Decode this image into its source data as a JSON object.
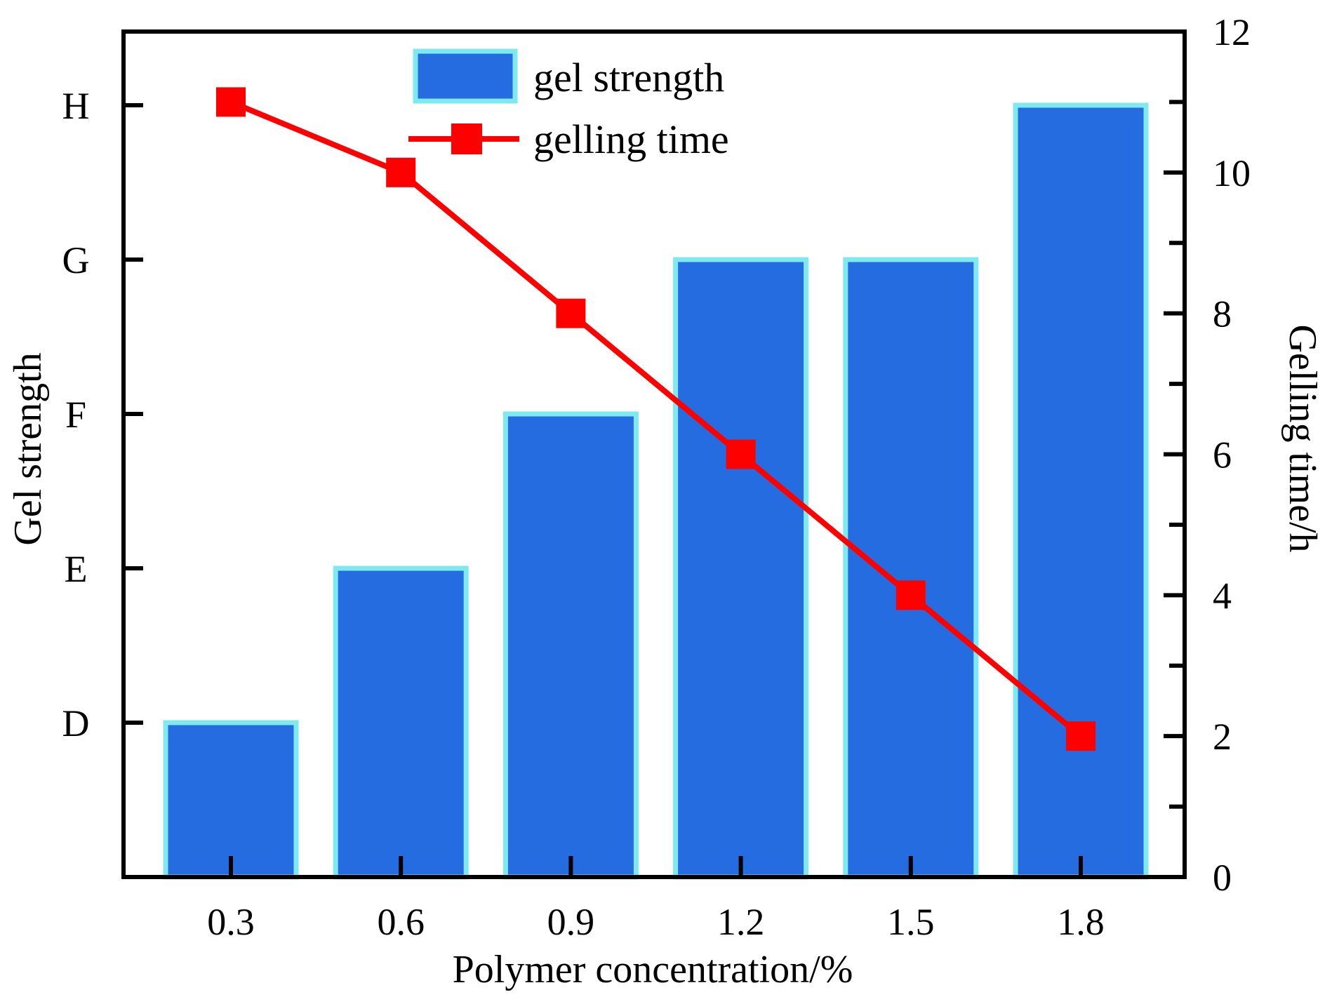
{
  "chart_data": {
    "type": "bar",
    "categories": [
      "0.3",
      "0.6",
      "0.9",
      "1.2",
      "1.5",
      "1.8"
    ],
    "xlabel": "Polymer concentration/%",
    "ylabel_left": "Gel strength",
    "ylabel_right": "Gelling time/h",
    "left_axis": {
      "grades": [
        "D",
        "E",
        "F",
        "G",
        "H"
      ]
    },
    "right_axis": {
      "ylim": [
        0,
        12
      ],
      "ticks": [
        "0",
        "2",
        "4",
        "6",
        "8",
        "10",
        "12"
      ]
    },
    "series": [
      {
        "name": "gel strength",
        "kind": "bar",
        "axis": "left",
        "values": [
          "D",
          "E",
          "F",
          "G",
          "G",
          "H"
        ],
        "fill": "#266ce1",
        "edge": "#7fe9f0"
      },
      {
        "name": "gelling time",
        "kind": "line",
        "axis": "right",
        "values": [
          11,
          10,
          8,
          6,
          4,
          2
        ],
        "color": "#ff0000"
      }
    ],
    "legend": "top-center",
    "grid": false
  }
}
